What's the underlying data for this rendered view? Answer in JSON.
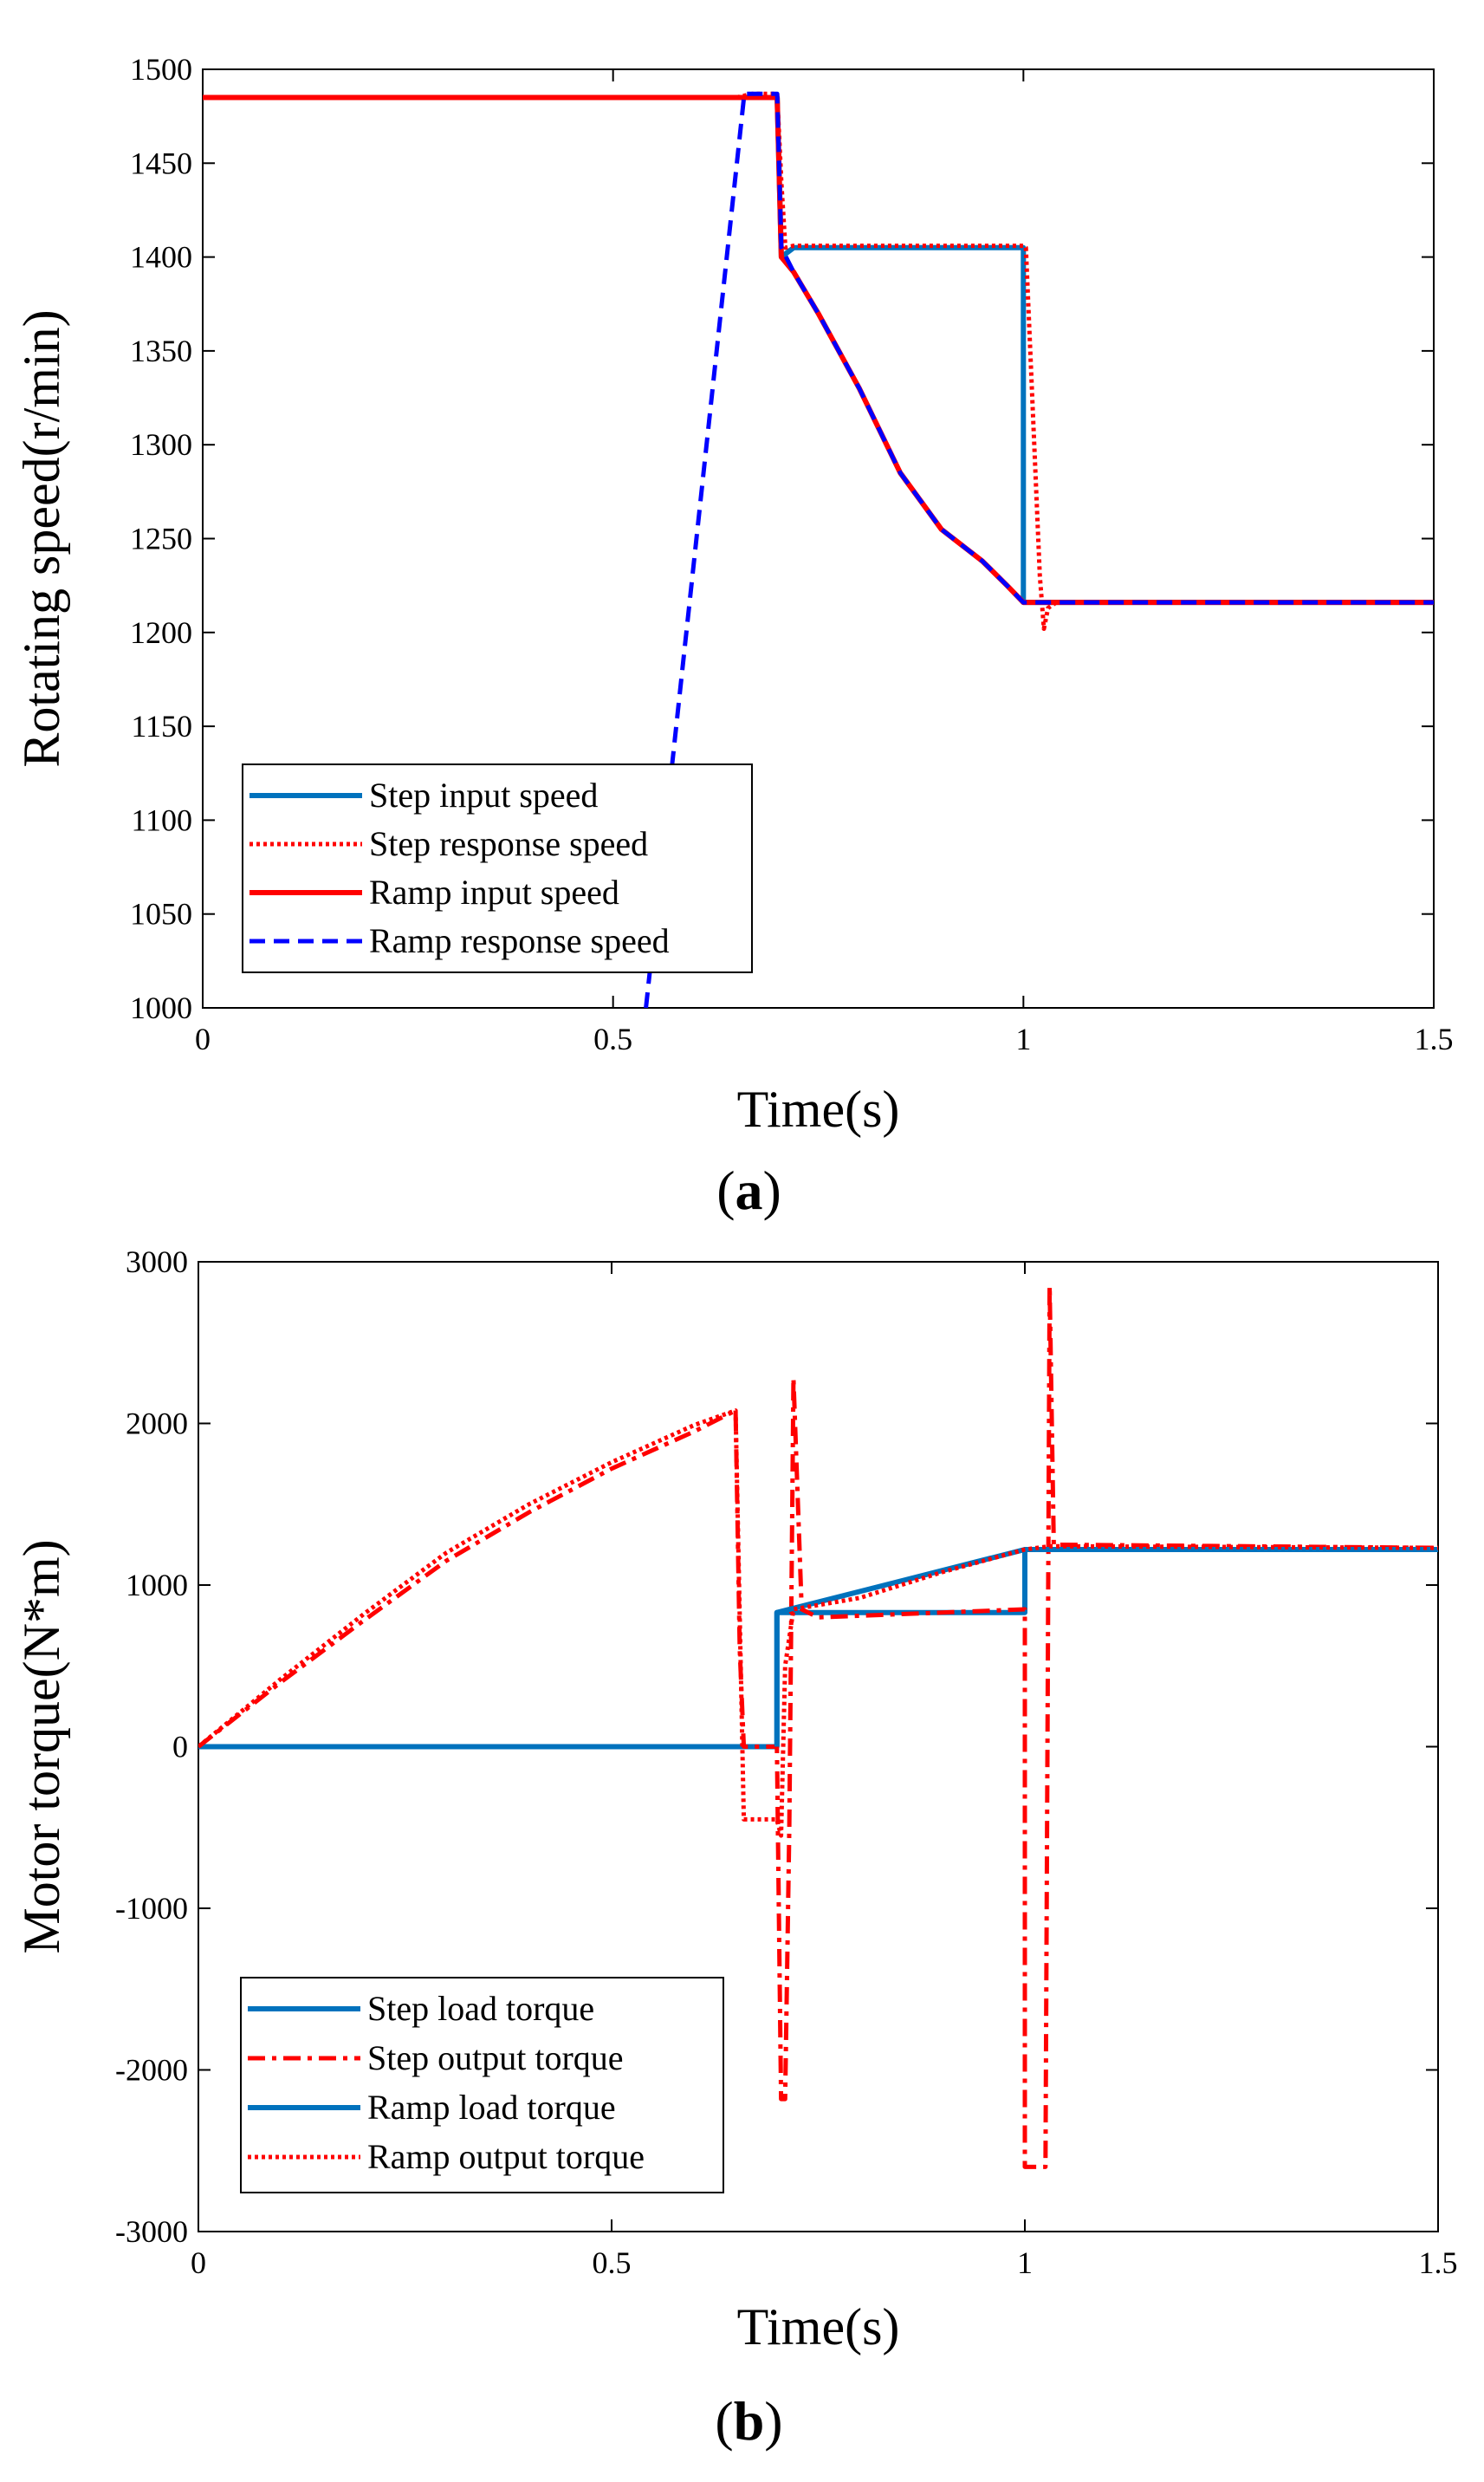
{
  "chart_data": [
    {
      "panel_label": "a",
      "type": "line",
      "xlabel": "Time(s)",
      "ylabel": "Rotating speed(r/min)",
      "xlim": [
        0,
        1.5
      ],
      "ylim": [
        1000,
        1500
      ],
      "xticks": [
        0,
        0.5,
        1,
        1.5
      ],
      "xtick_labels": [
        "0",
        "0.5",
        "1",
        "1.5"
      ],
      "yticks": [
        1000,
        1050,
        1100,
        1150,
        1200,
        1250,
        1300,
        1350,
        1400,
        1450,
        1500
      ],
      "ytick_labels": [
        "1000",
        "1050",
        "1100",
        "1150",
        "1200",
        "1250",
        "1300",
        "1350",
        "1400",
        "1450",
        "1500"
      ],
      "legend_position": "bottom-left",
      "series": [
        {
          "name": "Step input speed",
          "color": "#0072BD",
          "style": "solid",
          "x": [
            0,
            0.66,
            0.7,
            0.705,
            0.72,
            1.0,
            1.0,
            1.5
          ],
          "y": [
            1485,
            1485,
            1485,
            1400,
            1405,
            1405,
            1216,
            1216
          ]
        },
        {
          "name": "Step response speed",
          "color": "#FF0000",
          "style": "dotted",
          "x": [
            0,
            0.65,
            0.67,
            0.7,
            0.705,
            0.71,
            0.72,
            1.0,
            1.003,
            1.02,
            1.025,
            1.03,
            1.04,
            1.5
          ],
          "y": [
            1485,
            1485,
            1487,
            1487,
            1440,
            1405,
            1406,
            1406,
            1405,
            1230,
            1202,
            1213,
            1216,
            1216
          ]
        },
        {
          "name": "Ramp input speed",
          "color": "#FF0000",
          "style": "solid",
          "x": [
            0,
            0.66,
            0.7,
            0.705,
            0.72,
            0.75,
            0.8,
            0.85,
            0.9,
            0.95,
            0.98,
            1.0,
            1.5
          ],
          "y": [
            1485,
            1485,
            1485,
            1400,
            1392,
            1370,
            1330,
            1285,
            1255,
            1238,
            1225,
            1216,
            1216
          ]
        },
        {
          "name": "Ramp response speed",
          "color": "#0000FF",
          "style": "dashed",
          "x": [
            0.54,
            0.66,
            0.7,
            0.705,
            0.72,
            0.75,
            0.8,
            0.85,
            0.9,
            0.95,
            0.98,
            1.0,
            1.5
          ],
          "y": [
            1000,
            1487,
            1487,
            1405,
            1392,
            1370,
            1330,
            1285,
            1255,
            1238,
            1225,
            1216,
            1216
          ]
        }
      ]
    },
    {
      "panel_label": "b",
      "type": "line",
      "xlabel": "Time(s)",
      "ylabel": "Motor torque(N*m)",
      "xlim": [
        0,
        1.5
      ],
      "ylim": [
        -3000,
        3000
      ],
      "xticks": [
        0,
        0.5,
        1,
        1.5
      ],
      "xtick_labels": [
        "0",
        "0.5",
        "1",
        "1.5"
      ],
      "yticks": [
        -3000,
        -2000,
        -1000,
        0,
        1000,
        2000,
        3000
      ],
      "ytick_labels": [
        "-3000",
        "-2000",
        "-1000",
        "0",
        "1000",
        "2000",
        "3000"
      ],
      "legend_position": "bottom-left",
      "series": [
        {
          "name": "Step load torque",
          "color": "#0072BD",
          "style": "solid",
          "x": [
            0,
            0.7,
            0.7,
            1.0,
            1.0,
            1.5
          ],
          "y": [
            0,
            0,
            830,
            830,
            1220,
            1220
          ]
        },
        {
          "name": "Step output torque",
          "color": "#FF0000",
          "style": "dashdot",
          "x": [
            0,
            0.1,
            0.2,
            0.3,
            0.4,
            0.5,
            0.6,
            0.65,
            0.655,
            0.66,
            0.7,
            0.705,
            0.71,
            0.715,
            0.72,
            0.73,
            0.75,
            1.0,
            1.0,
            1.025,
            1.03,
            1.035,
            1.5
          ],
          "y": [
            0,
            400,
            780,
            1150,
            1450,
            1720,
            1950,
            2080,
            600,
            0,
            0,
            -2180,
            -2180,
            -500,
            2280,
            850,
            800,
            850,
            -2600,
            -2600,
            2850,
            1250,
            1230
          ]
        },
        {
          "name": "Ramp load torque",
          "color": "#0072BD",
          "style": "solid",
          "x": [
            0.7,
            0.7,
            1.0,
            1.5
          ],
          "y": [
            0,
            830,
            1220,
            1220
          ]
        },
        {
          "name": "Ramp output torque",
          "color": "#FF0000",
          "style": "dotted",
          "x": [
            0,
            0.1,
            0.2,
            0.3,
            0.4,
            0.5,
            0.6,
            0.65,
            0.66,
            0.7,
            0.705,
            0.71,
            0.72,
            0.8,
            0.9,
            1.0,
            1.03,
            1.5
          ],
          "y": [
            0,
            420,
            820,
            1200,
            1500,
            1760,
            1990,
            2080,
            -450,
            -450,
            -550,
            500,
            850,
            920,
            1080,
            1220,
            1240,
            1230
          ]
        }
      ]
    }
  ]
}
